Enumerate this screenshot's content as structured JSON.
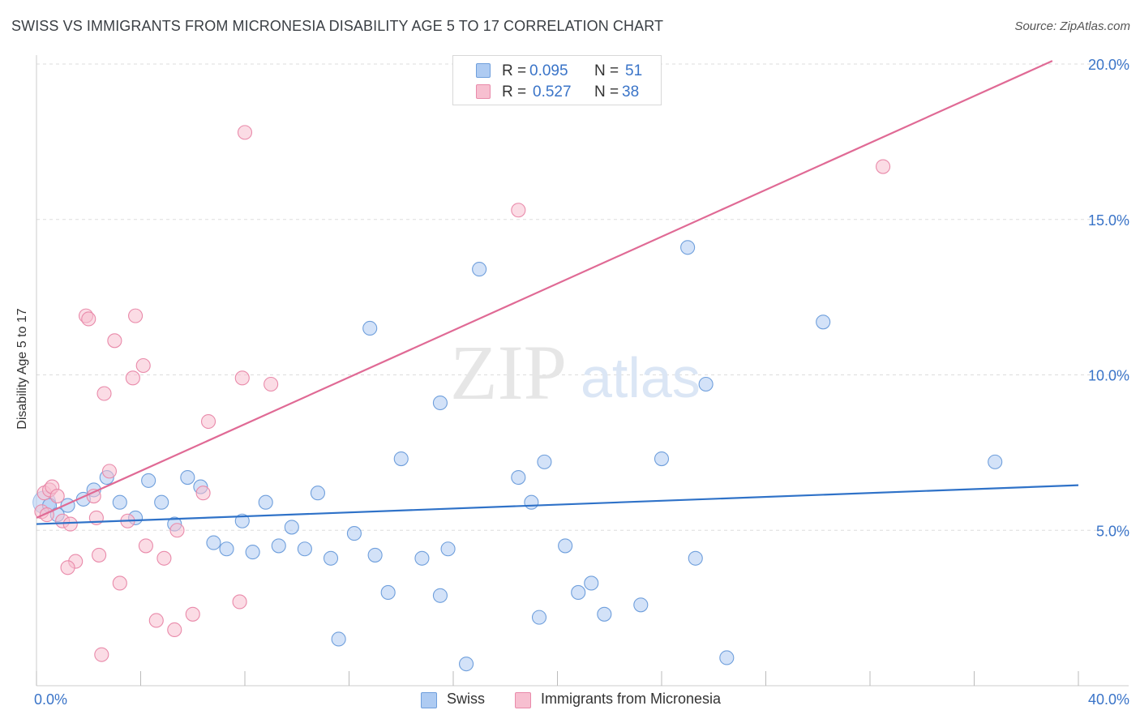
{
  "title": "SWISS VS IMMIGRANTS FROM MICRONESIA DISABILITY AGE 5 TO 17 CORRELATION CHART",
  "source": "Source: ZipAtlas.com",
  "watermark": {
    "zip": "ZIP",
    "atlas": "atlas"
  },
  "colors": {
    "swiss_fill": "#aecbf2",
    "swiss_stroke": "#6f9fdc",
    "swiss_line": "#2f72c8",
    "micro_fill": "#f7bfd0",
    "micro_stroke": "#e98aaa",
    "micro_line": "#e06a95",
    "tick_label": "#3a74c8",
    "grid": "#dddddd"
  },
  "legend": {
    "swiss": {
      "r_label": "R =",
      "r_value": "0.095",
      "n_label": "N =",
      "n_value": "51"
    },
    "micro": {
      "r_label": "R =",
      "r_value": "0.527",
      "n_label": "N =",
      "n_value": "38"
    }
  },
  "chart_data": {
    "type": "scatter",
    "title": "SWISS VS IMMIGRANTS FROM MICRONESIA DISABILITY AGE 5 TO 17 CORRELATION CHART",
    "xlabel": "",
    "ylabel": "Disability Age 5 to 17",
    "xlim": [
      0,
      40
    ],
    "ylim": [
      0,
      20
    ],
    "x_tick_labels": [
      {
        "value": 0,
        "label": "0.0%"
      },
      {
        "value": 40,
        "label": "40.0%"
      }
    ],
    "y_tick_labels": [
      {
        "value": 5,
        "label": "5.0%"
      },
      {
        "value": 10,
        "label": "10.0%"
      },
      {
        "value": 15,
        "label": "15.0%"
      },
      {
        "value": 20,
        "label": "20.0%"
      }
    ],
    "legend_position": "bottom",
    "series": [
      {
        "name": "Swiss",
        "r": 0.095,
        "n": 51,
        "trend": [
          [
            0,
            5.2
          ],
          [
            40,
            6.45
          ]
        ],
        "points": [
          [
            0.5,
            5.8
          ],
          [
            0.8,
            5.5
          ],
          [
            1.2,
            5.8
          ],
          [
            1.8,
            6.0
          ],
          [
            2.2,
            6.3
          ],
          [
            2.7,
            6.7
          ],
          [
            3.2,
            5.9
          ],
          [
            3.8,
            5.4
          ],
          [
            4.3,
            6.6
          ],
          [
            4.8,
            5.9
          ],
          [
            5.3,
            5.2
          ],
          [
            5.8,
            6.7
          ],
          [
            6.3,
            6.4
          ],
          [
            6.8,
            4.6
          ],
          [
            7.3,
            4.4
          ],
          [
            7.9,
            5.3
          ],
          [
            8.3,
            4.3
          ],
          [
            8.8,
            5.9
          ],
          [
            9.3,
            4.5
          ],
          [
            9.8,
            5.1
          ],
          [
            10.3,
            4.4
          ],
          [
            10.8,
            6.2
          ],
          [
            11.3,
            4.1
          ],
          [
            12.2,
            4.9
          ],
          [
            12.8,
            11.5
          ],
          [
            13.0,
            4.2
          ],
          [
            13.5,
            3.0
          ],
          [
            14.0,
            7.3
          ],
          [
            14.8,
            4.1
          ],
          [
            15.5,
            9.1
          ],
          [
            15.5,
            2.9
          ],
          [
            15.8,
            4.4
          ],
          [
            16.5,
            0.7
          ],
          [
            17.0,
            13.4
          ],
          [
            18.5,
            6.7
          ],
          [
            19.0,
            5.9
          ],
          [
            19.3,
            2.2
          ],
          [
            19.5,
            7.2
          ],
          [
            20.3,
            4.5
          ],
          [
            20.8,
            3.0
          ],
          [
            21.3,
            3.3
          ],
          [
            21.8,
            2.3
          ],
          [
            23.2,
            2.6
          ],
          [
            24.0,
            7.3
          ],
          [
            25.0,
            14.1
          ],
          [
            25.3,
            4.1
          ],
          [
            25.7,
            9.7
          ],
          [
            26.5,
            0.9
          ],
          [
            30.2,
            11.7
          ],
          [
            36.8,
            7.2
          ],
          [
            11.6,
            1.5
          ]
        ]
      },
      {
        "name": "Immigrants from Micronesia",
        "r": 0.527,
        "n": 38,
        "trend": [
          [
            0,
            5.4
          ],
          [
            39,
            20.1
          ]
        ],
        "points": [
          [
            0.2,
            5.6
          ],
          [
            0.3,
            6.2
          ],
          [
            0.5,
            6.3
          ],
          [
            0.6,
            6.4
          ],
          [
            0.8,
            6.1
          ],
          [
            1.0,
            5.3
          ],
          [
            1.3,
            5.2
          ],
          [
            1.5,
            4.0
          ],
          [
            1.2,
            3.8
          ],
          [
            1.9,
            11.9
          ],
          [
            2.0,
            11.8
          ],
          [
            2.2,
            6.1
          ],
          [
            2.4,
            4.2
          ],
          [
            2.5,
            1.0
          ],
          [
            2.6,
            9.4
          ],
          [
            2.8,
            6.9
          ],
          [
            3.0,
            11.1
          ],
          [
            3.2,
            3.3
          ],
          [
            3.5,
            5.3
          ],
          [
            3.7,
            9.9
          ],
          [
            3.8,
            11.9
          ],
          [
            4.1,
            10.3
          ],
          [
            4.2,
            4.5
          ],
          [
            4.6,
            2.1
          ],
          [
            4.9,
            4.1
          ],
          [
            5.3,
            1.8
          ],
          [
            5.4,
            5.0
          ],
          [
            6.0,
            2.3
          ],
          [
            6.4,
            6.2
          ],
          [
            6.6,
            8.5
          ],
          [
            7.8,
            2.7
          ],
          [
            7.9,
            9.9
          ],
          [
            8.0,
            17.8
          ],
          [
            9.0,
            9.7
          ],
          [
            18.5,
            15.3
          ],
          [
            32.5,
            16.7
          ],
          [
            2.3,
            5.4
          ],
          [
            0.4,
            5.5
          ]
        ]
      }
    ]
  },
  "bottom_legend": {
    "swiss": "Swiss",
    "micro": "Immigrants from Micronesia"
  }
}
